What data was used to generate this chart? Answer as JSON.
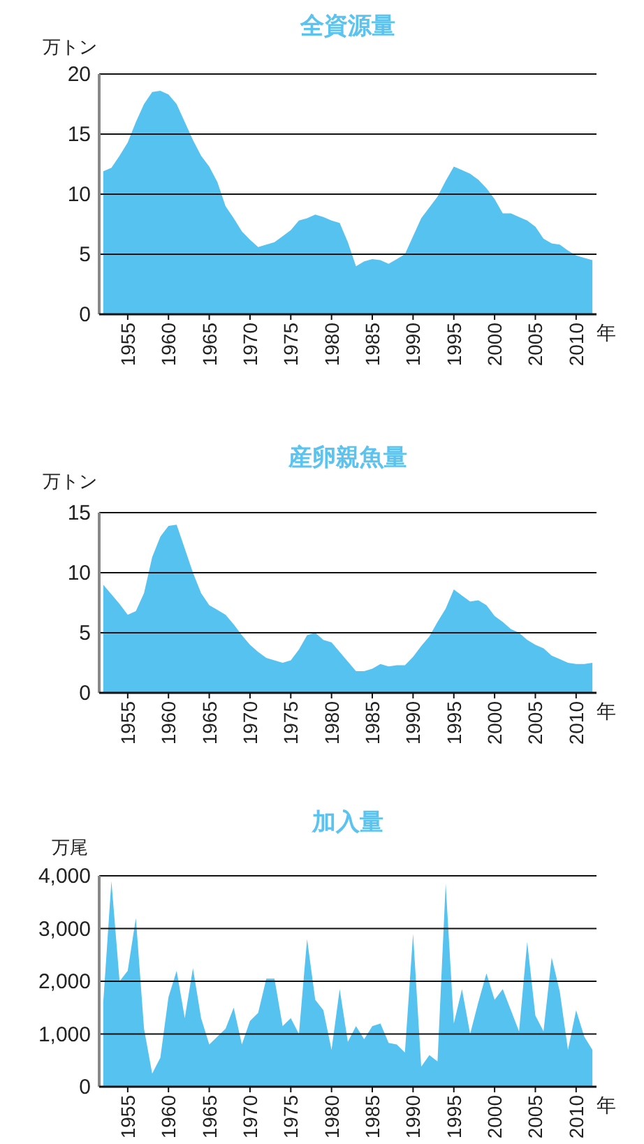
{
  "chart_data": [
    {
      "type": "area",
      "title": "全資源量",
      "ylabel": "万トン",
      "xlabel": "年",
      "color": "#56c2f0",
      "grid": "y",
      "xlim": [
        1951.5,
        2012.5
      ],
      "xticks": [
        1955,
        1960,
        1965,
        1970,
        1975,
        1980,
        1985,
        1990,
        1995,
        2000,
        2005,
        2010
      ],
      "ylim": [
        0,
        20
      ],
      "yticks": [
        0,
        5,
        10,
        15,
        20
      ],
      "x": [
        1952,
        1953,
        1954,
        1955,
        1956,
        1957,
        1958,
        1959,
        1960,
        1961,
        1962,
        1963,
        1964,
        1965,
        1966,
        1967,
        1968,
        1969,
        1970,
        1971,
        1972,
        1973,
        1974,
        1975,
        1976,
        1977,
        1978,
        1979,
        1980,
        1981,
        1982,
        1983,
        1984,
        1985,
        1986,
        1987,
        1988,
        1989,
        1990,
        1991,
        1992,
        1993,
        1994,
        1995,
        1996,
        1997,
        1998,
        1999,
        2000,
        2001,
        2002,
        2003,
        2004,
        2005,
        2006,
        2007,
        2008,
        2009,
        2010,
        2011,
        2012
      ],
      "values": [
        11.9,
        12.2,
        13.2,
        14.3,
        16.0,
        17.5,
        18.5,
        18.6,
        18.3,
        17.5,
        16.0,
        14.5,
        13.2,
        12.3,
        11.0,
        9.0,
        8.0,
        6.9,
        6.2,
        5.6,
        5.8,
        6.0,
        6.5,
        7.0,
        7.8,
        8.0,
        8.3,
        8.1,
        7.8,
        7.6,
        6.0,
        4.0,
        4.4,
        4.6,
        4.5,
        4.2,
        4.6,
        5.0,
        6.5,
        8.0,
        8.9,
        9.8,
        11.1,
        12.3,
        12.0,
        11.7,
        11.2,
        10.5,
        9.6,
        8.4,
        8.4,
        8.1,
        7.8,
        7.3,
        6.3,
        5.9,
        5.8,
        5.3,
        4.9,
        4.7,
        4.5
      ]
    },
    {
      "type": "area",
      "title": "産卵親魚量",
      "ylabel": "万トン",
      "xlabel": "年",
      "color": "#56c2f0",
      "grid": "y",
      "xlim": [
        1951.5,
        2012.5
      ],
      "xticks": [
        1955,
        1960,
        1965,
        1970,
        1975,
        1980,
        1985,
        1990,
        1995,
        2000,
        2005,
        2010
      ],
      "ylim": [
        0,
        15
      ],
      "yticks": [
        0,
        5,
        10,
        15
      ],
      "x": [
        1952,
        1953,
        1954,
        1955,
        1956,
        1957,
        1958,
        1959,
        1960,
        1961,
        1962,
        1963,
        1964,
        1965,
        1966,
        1967,
        1968,
        1969,
        1970,
        1971,
        1972,
        1973,
        1974,
        1975,
        1976,
        1977,
        1978,
        1979,
        1980,
        1981,
        1982,
        1983,
        1984,
        1985,
        1986,
        1987,
        1988,
        1989,
        1990,
        1991,
        1992,
        1993,
        1994,
        1995,
        1996,
        1997,
        1998,
        1999,
        2000,
        2001,
        2002,
        2003,
        2004,
        2005,
        2006,
        2007,
        2008,
        2009,
        2010,
        2011,
        2012
      ],
      "values": [
        9.0,
        8.2,
        7.4,
        6.5,
        6.8,
        8.3,
        11.3,
        13.0,
        13.9,
        14.0,
        12.0,
        10.0,
        8.3,
        7.3,
        6.9,
        6.5,
        5.7,
        4.8,
        4.0,
        3.4,
        2.9,
        2.7,
        2.5,
        2.7,
        3.6,
        4.8,
        5.0,
        4.4,
        4.2,
        3.4,
        2.6,
        1.8,
        1.8,
        2.0,
        2.4,
        2.2,
        2.3,
        2.3,
        3.0,
        3.9,
        4.7,
        5.9,
        7.0,
        8.6,
        8.1,
        7.6,
        7.7,
        7.3,
        6.4,
        5.9,
        5.3,
        5.0,
        4.4,
        4.0,
        3.7,
        3.1,
        2.8,
        2.5,
        2.4,
        2.4,
        2.5
      ]
    },
    {
      "type": "area",
      "title": "加入量",
      "ylabel": "万尾",
      "xlabel": "年",
      "color": "#56c2f0",
      "grid": "y",
      "xlim": [
        1951.5,
        2012.5
      ],
      "xticks": [
        1955,
        1960,
        1965,
        1970,
        1975,
        1980,
        1985,
        1990,
        1995,
        2000,
        2005,
        2010
      ],
      "ylim": [
        0,
        4000
      ],
      "yticks": [
        0,
        {
          "value": 1000,
          "label": "1,000"
        },
        {
          "value": 2000,
          "label": "2,000"
        },
        {
          "value": 3000,
          "label": "3,000"
        },
        {
          "value": 4000,
          "label": "4,000"
        }
      ],
      "x": [
        1952,
        1953,
        1954,
        1955,
        1956,
        1957,
        1958,
        1959,
        1960,
        1961,
        1962,
        1963,
        1964,
        1965,
        1966,
        1967,
        1968,
        1969,
        1970,
        1971,
        1972,
        1973,
        1974,
        1975,
        1976,
        1977,
        1978,
        1979,
        1980,
        1981,
        1982,
        1983,
        1984,
        1985,
        1986,
        1987,
        1988,
        1989,
        1990,
        1991,
        1992,
        1993,
        1994,
        1995,
        1996,
        1997,
        1998,
        1999,
        2000,
        2001,
        2002,
        2003,
        2004,
        2005,
        2006,
        2007,
        2008,
        2009,
        2010,
        2011,
        2012
      ],
      "values": [
        1600,
        3900,
        2000,
        2200,
        3200,
        1100,
        250,
        550,
        1700,
        2200,
        1300,
        2250,
        1300,
        800,
        950,
        1100,
        1500,
        800,
        1250,
        1400,
        2050,
        2050,
        1150,
        1300,
        1000,
        2800,
        1650,
        1450,
        700,
        1850,
        850,
        1150,
        900,
        1150,
        1200,
        830,
        800,
        650,
        2900,
        380,
        600,
        480,
        3850,
        1200,
        1850,
        1000,
        1600,
        2150,
        1650,
        1850,
        1450,
        1050,
        2750,
        1350,
        1050,
        2450,
        1800,
        700,
        1450,
        950,
        700
      ]
    }
  ]
}
